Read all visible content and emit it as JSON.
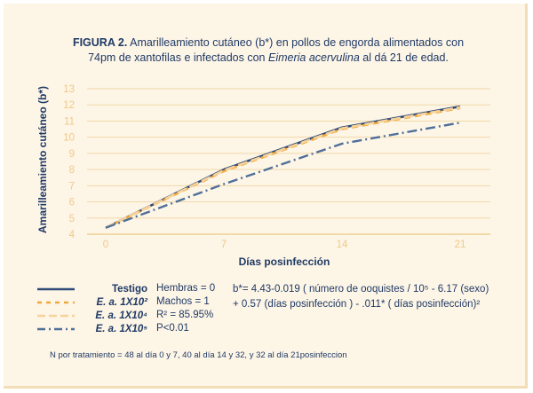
{
  "figure": {
    "label": "FIGURA 2.",
    "title_part1": "Amarilleamiento cutáneo (b*) en pollos de engorda alimentados con",
    "title_part2": "74pm de xantofilas e infectados con",
    "title_italic": "Eimeria acervulina",
    "title_part3": "al dá 21 de edad."
  },
  "chart_data": {
    "type": "line",
    "x": [
      0,
      7,
      14,
      21
    ],
    "xticks": [
      "0",
      "7",
      "14",
      "21"
    ],
    "yticks": [
      "4",
      "5",
      "6",
      "7",
      "8",
      "9",
      "10",
      "11",
      "12",
      "13"
    ],
    "ylim": [
      4,
      13
    ],
    "xlim": [
      0,
      21
    ],
    "xlabel": "Días posinfección",
    "ylabel": "Amarilleamiento cutáneo (b*)",
    "grid": true,
    "series": [
      {
        "name": "Testigo",
        "values": [
          4.4,
          8.0,
          10.6,
          11.9
        ],
        "color": "#2f4a78",
        "dash": "solid"
      },
      {
        "name": "E. a. 1X10²",
        "values": [
          4.4,
          7.9,
          10.5,
          11.8
        ],
        "color": "#f2a93b",
        "dash": "dash"
      },
      {
        "name": "E. a. 1X10⁴",
        "values": [
          4.4,
          7.95,
          10.55,
          11.85
        ],
        "color": "#f7d39b",
        "dash": "longdash"
      },
      {
        "name": "E. a. 1X10⁵",
        "values": [
          4.4,
          7.1,
          9.6,
          10.9
        ],
        "color": "#4f6f99",
        "dash": "dashdot"
      }
    ]
  },
  "stats": {
    "line1": "Hembras = 0",
    "line2": "Machos = 1",
    "line3": "R² = 85.95%",
    "line4": "P<0.01"
  },
  "equation": {
    "line1": "b*= 4.43-0.019 ( número de ooquistes / 10⁵ - 6.17 (sexo)",
    "line2": "+ 0.57 (días posinfección ) - .011* ( días posinfección)²"
  },
  "footnote": "N por tratamiento = 48 al día 0 y 7, 40 al día 14 y 32, y 32 al día 21posinfeccion"
}
